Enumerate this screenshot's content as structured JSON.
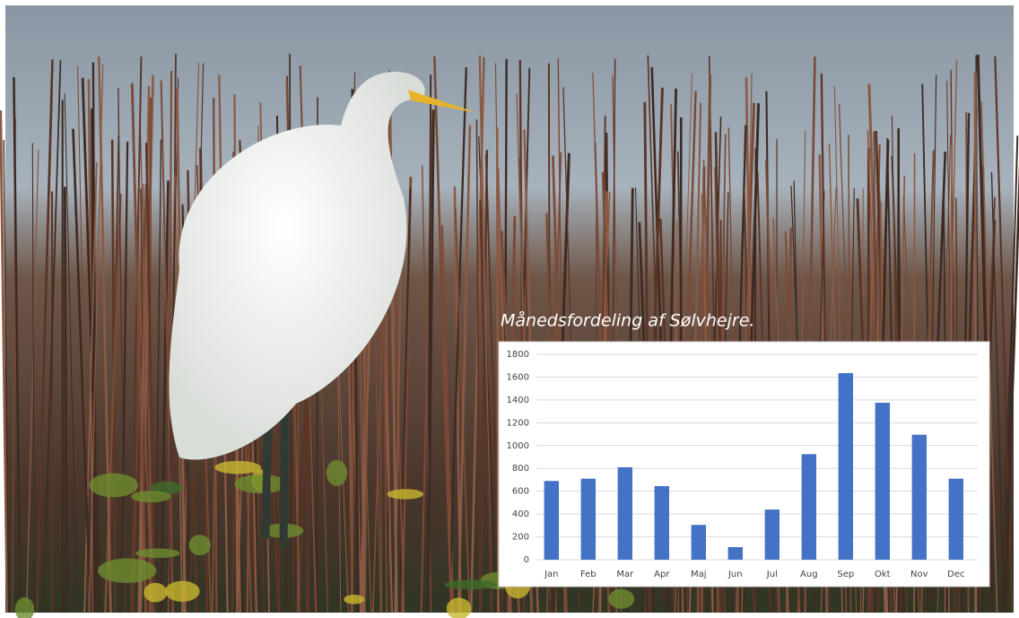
{
  "chart_data": {
    "type": "bar",
    "title": "Månedsfordeling af Sølvhejre.",
    "categories": [
      "Jan",
      "Feb",
      "Mar",
      "Apr",
      "Maj",
      "Jun",
      "Jul",
      "Aug",
      "Sep",
      "Okt",
      "Nov",
      "Dec"
    ],
    "values": [
      690,
      710,
      810,
      645,
      305,
      110,
      440,
      925,
      1635,
      1375,
      1095,
      710
    ],
    "color": "#4472c4",
    "ylim": [
      0,
      1800
    ],
    "yticks": [
      0,
      200,
      400,
      600,
      800,
      1000,
      1200,
      1400,
      1600,
      1800
    ],
    "grid": true
  }
}
